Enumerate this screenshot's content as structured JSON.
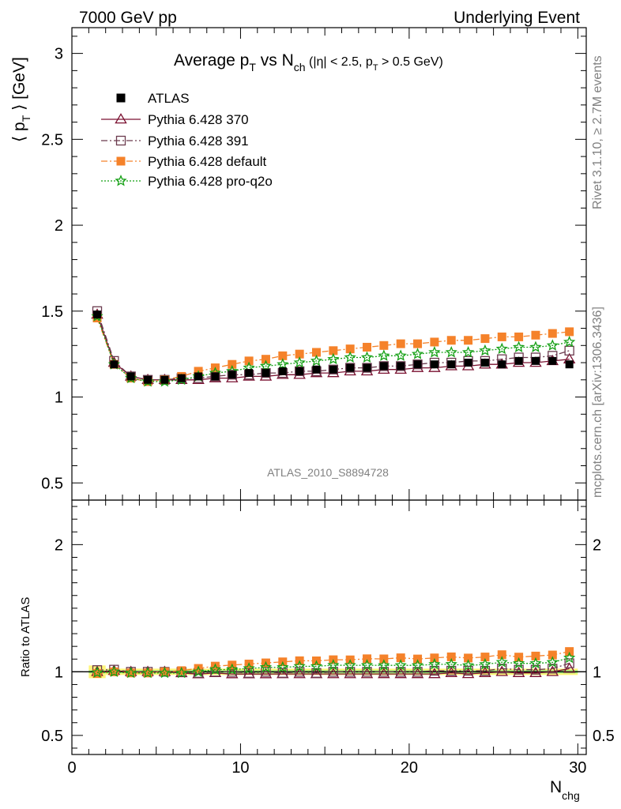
{
  "header": {
    "left": "7000 GeV pp",
    "right": "Underlying Event"
  },
  "side_text": {
    "rivet": "Rivet 3.1.10, ≥ 2.7M events",
    "mcplots": "mcplots.cern.ch [arXiv:1306.3436]"
  },
  "chart_data": {
    "type": "line",
    "title": {
      "main": "Average p",
      "sub_T": "T",
      "vs": " vs N",
      "sub_ch": "ch",
      "cond_open": " (|η| < 2.5, p",
      "cond_sub_T": "T",
      "cond_close": " > 0.5 GeV)"
    },
    "watermark": "ATLAS_2010_S8894728",
    "ylabel_top": {
      "open": "⟨ p",
      "sub": "T",
      "close": " ⟩ [GeV]"
    },
    "ylabel_bottom": "Ratio to ATLAS",
    "xlabel": {
      "main": "N",
      "sub": "chg"
    },
    "xlim": [
      0,
      30.5
    ],
    "ylim_top": [
      0.4,
      3.15
    ],
    "ylim_bottom": [
      0.35,
      2.35
    ],
    "x_ticks": [
      0,
      10,
      20,
      30
    ],
    "y_ticks_top": [
      0.5,
      1,
      1.5,
      2,
      2.5,
      3
    ],
    "y_ticks_bottom": [
      0.5,
      1,
      2
    ],
    "tick_labels": {
      "x": [
        "0",
        "10",
        "20",
        "30"
      ],
      "y_top": [
        "0.5",
        "1",
        "1.5",
        "2",
        "2.5",
        "3"
      ],
      "y_bottom": [
        "0.5",
        "1",
        "2"
      ]
    },
    "x": [
      1.5,
      2.5,
      3.5,
      4.5,
      5.5,
      6.5,
      7.5,
      8.5,
      9.5,
      10.5,
      11.5,
      12.5,
      13.5,
      14.5,
      15.5,
      16.5,
      17.5,
      18.5,
      19.5,
      20.5,
      21.5,
      22.5,
      23.5,
      24.5,
      25.5,
      26.5,
      27.5,
      28.5,
      29.5
    ],
    "reference": {
      "name": "ATLAS",
      "color": "#000000",
      "values": [
        1.48,
        1.19,
        1.12,
        1.1,
        1.1,
        1.11,
        1.12,
        1.12,
        1.13,
        1.14,
        1.14,
        1.15,
        1.15,
        1.16,
        1.16,
        1.17,
        1.17,
        1.18,
        1.18,
        1.19,
        1.19,
        1.19,
        1.2,
        1.2,
        1.19,
        1.21,
        1.21,
        1.21,
        1.19
      ],
      "band_yellow": [
        [
          1.0,
          2.0,
          0.05
        ],
        [
          2.0,
          30.0,
          0.025
        ]
      ],
      "band_green": [
        [
          1.0,
          30.0,
          0.012
        ]
      ]
    },
    "series": [
      {
        "name": "Pythia 6.428 370",
        "color": "#7a1030",
        "marker": "triangle-open",
        "dash": "",
        "values": [
          1.48,
          1.2,
          1.12,
          1.1,
          1.1,
          1.1,
          1.1,
          1.11,
          1.11,
          1.12,
          1.12,
          1.13,
          1.13,
          1.14,
          1.14,
          1.15,
          1.15,
          1.16,
          1.16,
          1.17,
          1.17,
          1.18,
          1.18,
          1.19,
          1.19,
          1.2,
          1.2,
          1.21,
          1.22
        ]
      },
      {
        "name": "Pythia 6.428 391",
        "color": "#6b3a4e",
        "marker": "square-open",
        "dash": "8,3,2,3",
        "values": [
          1.5,
          1.21,
          1.12,
          1.1,
          1.1,
          1.11,
          1.11,
          1.12,
          1.13,
          1.13,
          1.14,
          1.14,
          1.15,
          1.15,
          1.16,
          1.17,
          1.17,
          1.18,
          1.18,
          1.19,
          1.2,
          1.2,
          1.21,
          1.21,
          1.22,
          1.23,
          1.23,
          1.24,
          1.27
        ]
      },
      {
        "name": "Pythia 6.428 default",
        "color": "#f5822a",
        "marker": "square-filled",
        "dash": "8,3,2,3",
        "values": [
          1.46,
          1.19,
          1.11,
          1.09,
          1.1,
          1.12,
          1.15,
          1.17,
          1.19,
          1.21,
          1.22,
          1.24,
          1.25,
          1.26,
          1.27,
          1.28,
          1.29,
          1.3,
          1.31,
          1.31,
          1.32,
          1.33,
          1.33,
          1.34,
          1.35,
          1.35,
          1.36,
          1.37,
          1.38
        ]
      },
      {
        "name": "Pythia 6.428 pro-q2o",
        "color": "#15a015",
        "marker": "star",
        "dash": "2,2",
        "values": [
          1.47,
          1.19,
          1.11,
          1.09,
          1.09,
          1.1,
          1.12,
          1.14,
          1.15,
          1.17,
          1.18,
          1.19,
          1.2,
          1.21,
          1.22,
          1.23,
          1.23,
          1.24,
          1.24,
          1.25,
          1.26,
          1.26,
          1.26,
          1.27,
          1.28,
          1.29,
          1.29,
          1.3,
          1.32
        ]
      }
    ]
  }
}
